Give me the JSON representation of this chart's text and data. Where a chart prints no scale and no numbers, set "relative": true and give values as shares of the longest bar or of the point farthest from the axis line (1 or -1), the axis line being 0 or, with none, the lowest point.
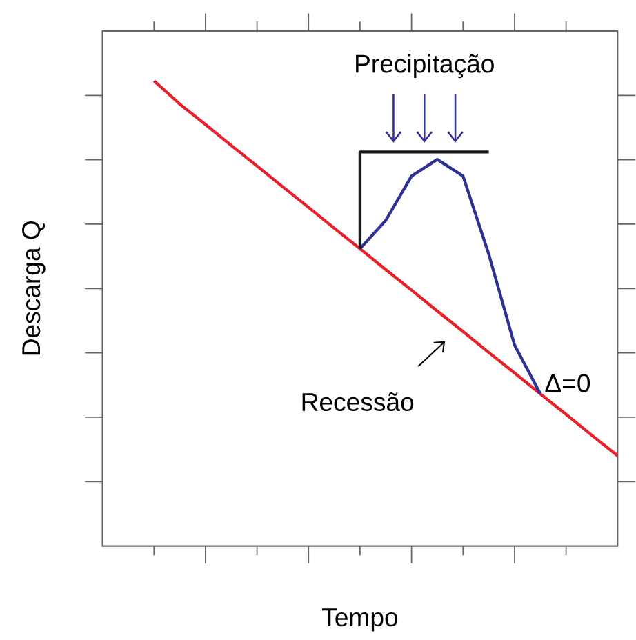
{
  "chart_data": {
    "type": "line",
    "relative": true,
    "xlabel": "Tempo",
    "ylabel": "Descarga Q",
    "categories": [
      null,
      null,
      null,
      null,
      null,
      null,
      null,
      null,
      null,
      null,
      null,
      null,
      null,
      null,
      null,
      null,
      null,
      null,
      null,
      null,
      null
    ],
    "series": [
      {
        "color": "#e8202a",
        "values": [
          null,
          null,
          1,
          0.95,
          0.906,
          0.861,
          0.817,
          0.772,
          0.728,
          0.683,
          0.639,
          0.594,
          0.55,
          0.505,
          0.461,
          0.416,
          0.372,
          0.327,
          0.283,
          0.238,
          0.194
        ]
      },
      {
        "color": "#2e3192",
        "values": [
          null,
          null,
          null,
          null,
          null,
          null,
          null,
          null,
          null,
          null,
          0.639,
          0.7,
          0.795,
          0.831,
          0.795,
          0.627,
          0.432,
          0.327,
          null,
          null,
          null
        ]
      },
      {
        "type": "step",
        "color": "#1a1a1a",
        "values": [
          null,
          null,
          null,
          null,
          null,
          null,
          null,
          null,
          null,
          null,
          0.639,
          0.847,
          0.847,
          0.847,
          0.847,
          0.847,
          null,
          null,
          null,
          null,
          null
        ]
      }
    ],
    "annotations": [
      "Precipitação",
      "Recessão",
      "Δ=0"
    ]
  }
}
